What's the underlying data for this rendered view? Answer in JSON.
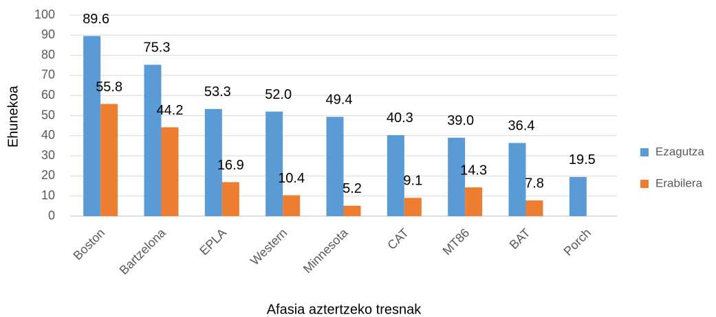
{
  "chart_data": {
    "type": "bar",
    "x_label": "Afasia aztertzeko tresnak",
    "y_label": "Ehunekoa",
    "categories": [
      "Boston",
      "Bartzelona",
      "EPLA",
      "Western",
      "Minnesota",
      "CAT",
      "MT86",
      "BAT",
      "Porch"
    ],
    "series": [
      {
        "name": "Ezagutza",
        "color": "#5b9bd5",
        "values": [
          89.6,
          75.3,
          53.3,
          52.0,
          49.4,
          40.3,
          39.0,
          36.4,
          19.5
        ],
        "value_labels": [
          "89.6",
          "75.3",
          "53.3",
          "52.0",
          "49.4",
          "40.3",
          "39.0",
          "36.4",
          "19.5"
        ]
      },
      {
        "name": "Erabilera",
        "color": "#ed7d31",
        "values": [
          55.8,
          44.2,
          16.9,
          10.4,
          5.2,
          9.1,
          14.3,
          7.8,
          null
        ],
        "value_labels": [
          "55.8",
          "44.2",
          "16.9",
          "10.4",
          "5.2",
          "9.1",
          "14.3",
          "7.8",
          null
        ]
      }
    ],
    "ylim": [
      0,
      100
    ],
    "yticks": [
      0,
      10,
      20,
      30,
      40,
      50,
      60,
      70,
      80,
      90,
      100
    ],
    "grid": true,
    "legend": "right"
  }
}
